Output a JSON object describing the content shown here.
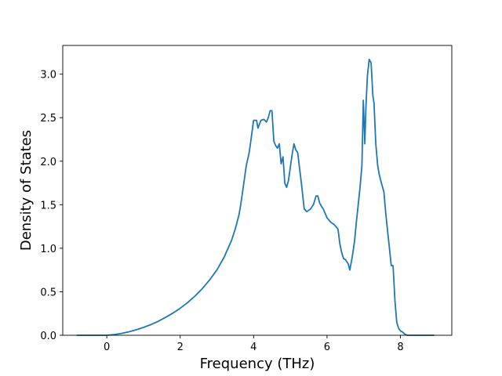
{
  "chart_data": {
    "type": "line",
    "title": "",
    "xlabel": "Frequency (THz)",
    "ylabel": "Density of States",
    "xlim": [
      -1.2,
      9.4
    ],
    "ylim": [
      0.0,
      3.33
    ],
    "xticks": [
      0,
      2,
      4,
      6,
      8
    ],
    "xtick_labels": [
      "0",
      "2",
      "4",
      "6",
      "8"
    ],
    "yticks": [
      0.0,
      0.5,
      1.0,
      1.5,
      2.0,
      2.5,
      3.0
    ],
    "ytick_labels": [
      "0.0",
      "0.5",
      "1.0",
      "1.5",
      "2.0",
      "2.5",
      "3.0"
    ],
    "grid": false,
    "legend": "none",
    "color": "#1f77b4",
    "series": [
      {
        "x": [
          -0.8,
          -0.4,
          0.0,
          0.2,
          0.4,
          0.6,
          0.8,
          1.0,
          1.2,
          1.4,
          1.6,
          1.8,
          2.0,
          2.2,
          2.4,
          2.6,
          2.8,
          3.0,
          3.2,
          3.4,
          3.5,
          3.6,
          3.65,
          3.7,
          3.8,
          3.88,
          3.92,
          4.0,
          4.08,
          4.12,
          4.2,
          4.28,
          4.35,
          4.4,
          4.45,
          4.5,
          4.55,
          4.6,
          4.65,
          4.7,
          4.75,
          4.8,
          4.85,
          4.9,
          4.95,
          5.0,
          5.05,
          5.1,
          5.15,
          5.2,
          5.3,
          5.38,
          5.45,
          5.55,
          5.63,
          5.7,
          5.75,
          5.8,
          5.85,
          5.9,
          6.0,
          6.1,
          6.2,
          6.3,
          6.35,
          6.4,
          6.45,
          6.5,
          6.58,
          6.62,
          6.68,
          6.75,
          6.8,
          6.85,
          6.9,
          6.95,
          6.99,
          7.03,
          7.06,
          7.1,
          7.15,
          7.2,
          7.25,
          7.28,
          7.33,
          7.38,
          7.42,
          7.48,
          7.55,
          7.6,
          7.65,
          7.7,
          7.75,
          7.8,
          7.85,
          7.9,
          7.95,
          8.0,
          8.05,
          8.1,
          8.15,
          8.2,
          8.5,
          8.9
        ],
        "y": [
          0.0,
          0.0,
          0.0,
          0.008,
          0.022,
          0.04,
          0.063,
          0.09,
          0.122,
          0.16,
          0.205,
          0.255,
          0.31,
          0.375,
          0.45,
          0.535,
          0.635,
          0.75,
          0.9,
          1.09,
          1.22,
          1.38,
          1.5,
          1.65,
          1.95,
          2.1,
          2.22,
          2.47,
          2.47,
          2.38,
          2.47,
          2.48,
          2.45,
          2.5,
          2.58,
          2.58,
          2.23,
          2.18,
          2.15,
          2.2,
          1.97,
          2.05,
          1.75,
          1.7,
          1.78,
          1.93,
          2.08,
          2.2,
          2.13,
          2.1,
          1.75,
          1.45,
          1.42,
          1.45,
          1.5,
          1.6,
          1.6,
          1.52,
          1.48,
          1.45,
          1.35,
          1.3,
          1.27,
          1.22,
          1.05,
          0.95,
          0.88,
          0.87,
          0.82,
          0.75,
          0.88,
          1.08,
          1.3,
          1.5,
          1.7,
          1.95,
          2.7,
          2.2,
          2.62,
          2.98,
          3.17,
          3.13,
          2.75,
          2.67,
          2.2,
          1.95,
          1.85,
          1.75,
          1.65,
          1.4,
          1.2,
          1.0,
          0.8,
          0.8,
          0.4,
          0.15,
          0.08,
          0.05,
          0.04,
          0.02,
          0.005,
          0.0,
          0.0,
          0.0
        ]
      }
    ]
  }
}
